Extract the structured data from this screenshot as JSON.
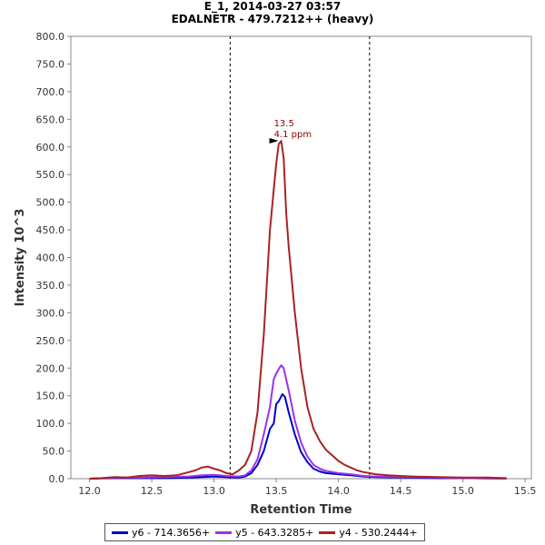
{
  "chart_data": {
    "type": "line",
    "title": "E_1, 2014-03-27 03:57",
    "subtitle": "EDALNETR - 479.7212++ (heavy)",
    "xlabel": "Retention Time",
    "ylabel": "Intensity 10^3",
    "xlim": [
      11.85,
      15.55
    ],
    "ylim": [
      0,
      800
    ],
    "x_ticks": [
      "12.0",
      "12.5",
      "13.0",
      "13.5",
      "14.0",
      "14.5",
      "15.0",
      "15.5"
    ],
    "y_ticks": [
      "0.0",
      "50.0",
      "100.0",
      "150.0",
      "200.0",
      "250.0",
      "300.0",
      "350.0",
      "400.0",
      "450.0",
      "500.0",
      "550.0",
      "600.0",
      "650.0",
      "700.0",
      "750.0",
      "800.0"
    ],
    "integration_bounds": [
      13.13,
      14.25
    ],
    "peak_annotation": {
      "rt_label": "13.5",
      "ppm_label": "4.1 ppm",
      "x": 13.54,
      "y": 611
    },
    "series": [
      {
        "name": "y6 - 714.3656+",
        "color": "#0000cc",
        "points": [
          [
            12.0,
            0
          ],
          [
            12.2,
            1
          ],
          [
            12.4,
            1
          ],
          [
            12.6,
            1
          ],
          [
            12.8,
            2
          ],
          [
            12.9,
            3
          ],
          [
            13.0,
            4
          ],
          [
            13.1,
            3
          ],
          [
            13.2,
            2
          ],
          [
            13.25,
            4
          ],
          [
            13.3,
            10
          ],
          [
            13.35,
            25
          ],
          [
            13.4,
            50
          ],
          [
            13.45,
            90
          ],
          [
            13.48,
            100
          ],
          [
            13.5,
            135
          ],
          [
            13.52,
            140
          ],
          [
            13.55,
            153
          ],
          [
            13.57,
            148
          ],
          [
            13.6,
            120
          ],
          [
            13.65,
            80
          ],
          [
            13.7,
            48
          ],
          [
            13.75,
            30
          ],
          [
            13.8,
            18
          ],
          [
            13.85,
            13
          ],
          [
            13.9,
            10
          ],
          [
            14.0,
            8
          ],
          [
            14.1,
            6
          ],
          [
            14.2,
            4
          ],
          [
            14.3,
            3
          ],
          [
            14.5,
            2
          ],
          [
            14.8,
            1
          ],
          [
            15.0,
            1
          ],
          [
            15.35,
            0
          ]
        ]
      },
      {
        "name": "y5 - 643.3285+",
        "color": "#9933ee",
        "points": [
          [
            12.0,
            0
          ],
          [
            12.2,
            2
          ],
          [
            12.4,
            2
          ],
          [
            12.6,
            3
          ],
          [
            12.8,
            4
          ],
          [
            12.9,
            6
          ],
          [
            13.0,
            7
          ],
          [
            13.1,
            5
          ],
          [
            13.2,
            4
          ],
          [
            13.25,
            6
          ],
          [
            13.3,
            15
          ],
          [
            13.35,
            35
          ],
          [
            13.4,
            80
          ],
          [
            13.45,
            130
          ],
          [
            13.48,
            180
          ],
          [
            13.5,
            190
          ],
          [
            13.52,
            198
          ],
          [
            13.54,
            205
          ],
          [
            13.56,
            200
          ],
          [
            13.6,
            160
          ],
          [
            13.65,
            105
          ],
          [
            13.7,
            65
          ],
          [
            13.75,
            40
          ],
          [
            13.8,
            25
          ],
          [
            13.85,
            18
          ],
          [
            13.9,
            14
          ],
          [
            14.0,
            10
          ],
          [
            14.1,
            8
          ],
          [
            14.2,
            5
          ],
          [
            14.3,
            4
          ],
          [
            14.5,
            3
          ],
          [
            14.8,
            2
          ],
          [
            15.0,
            1
          ],
          [
            15.35,
            0
          ]
        ]
      },
      {
        "name": "y4 - 530.2444+",
        "color": "#aa2222",
        "points": [
          [
            12.0,
            0
          ],
          [
            12.1,
            1
          ],
          [
            12.2,
            3
          ],
          [
            12.3,
            2
          ],
          [
            12.4,
            5
          ],
          [
            12.5,
            6
          ],
          [
            12.6,
            5
          ],
          [
            12.7,
            6
          ],
          [
            12.8,
            12
          ],
          [
            12.85,
            15
          ],
          [
            12.9,
            20
          ],
          [
            12.95,
            22
          ],
          [
            13.0,
            18
          ],
          [
            13.05,
            15
          ],
          [
            13.1,
            10
          ],
          [
            13.15,
            8
          ],
          [
            13.2,
            15
          ],
          [
            13.25,
            25
          ],
          [
            13.3,
            50
          ],
          [
            13.35,
            120
          ],
          [
            13.4,
            260
          ],
          [
            13.45,
            450
          ],
          [
            13.5,
            570
          ],
          [
            13.52,
            605
          ],
          [
            13.54,
            611
          ],
          [
            13.56,
            580
          ],
          [
            13.58,
            480
          ],
          [
            13.6,
            420
          ],
          [
            13.65,
            300
          ],
          [
            13.7,
            200
          ],
          [
            13.75,
            130
          ],
          [
            13.8,
            90
          ],
          [
            13.85,
            68
          ],
          [
            13.9,
            52
          ],
          [
            13.95,
            42
          ],
          [
            14.0,
            32
          ],
          [
            14.05,
            25
          ],
          [
            14.1,
            20
          ],
          [
            14.15,
            15
          ],
          [
            14.2,
            12
          ],
          [
            14.25,
            10
          ],
          [
            14.3,
            8
          ],
          [
            14.4,
            6
          ],
          [
            14.5,
            5
          ],
          [
            14.6,
            4
          ],
          [
            14.8,
            3
          ],
          [
            15.0,
            2
          ],
          [
            15.2,
            2
          ],
          [
            15.35,
            1
          ]
        ]
      }
    ]
  }
}
